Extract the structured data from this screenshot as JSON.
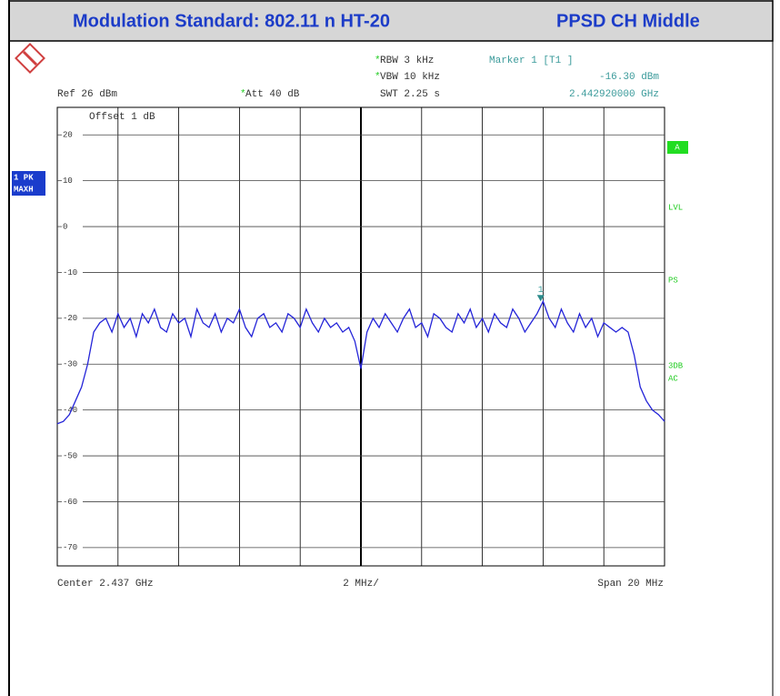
{
  "chart_data": {
    "type": "line",
    "title": "Modulation Standard: 802.11 n HT-20",
    "subtitle": "PPSD CH Middle",
    "settings": {
      "rbw": "RBW 3 kHz",
      "vbw": "VBW 10 kHz",
      "swt": "SWT 2.25 s",
      "ref": "Ref 26 dBm",
      "att": "Att 40 dB",
      "offset": "Offset 1 dB"
    },
    "marker_info": {
      "title": "Marker 1 [T1 ]",
      "level": "-16.30 dBm",
      "frequency": "2.442920000 GHz"
    },
    "trace_label": [
      "1 PK",
      "MAXH"
    ],
    "side_labels": [
      "A",
      "LVL",
      "PS",
      "3DB",
      "AC"
    ],
    "footer": {
      "center": "Center 2.437 GHz",
      "division": "2 MHz/",
      "span": "Span 20 MHz"
    },
    "xlim": [
      2.427,
      2.447
    ],
    "xticks": [
      2.427,
      2.429,
      2.431,
      2.433,
      2.435,
      2.437,
      2.439,
      2.441,
      2.443,
      2.445,
      2.447
    ],
    "ylim": [
      -74,
      26
    ],
    "yticks": [
      20,
      10,
      0,
      -10,
      -20,
      -30,
      -40,
      -50,
      -60,
      -70
    ],
    "grid": true,
    "x": [
      2.427,
      2.4272,
      2.4274,
      2.4276,
      2.4278,
      2.428,
      2.4282,
      2.4284,
      2.4286,
      2.4288,
      2.429,
      2.4292,
      2.4294,
      2.4296,
      2.4298,
      2.43,
      2.4302,
      2.4304,
      2.4306,
      2.4308,
      2.431,
      2.4312,
      2.4314,
      2.4316,
      2.4318,
      2.432,
      2.4322,
      2.4324,
      2.4326,
      2.4328,
      2.433,
      2.4332,
      2.4334,
      2.4336,
      2.4338,
      2.434,
      2.4342,
      2.4344,
      2.4346,
      2.4348,
      2.435,
      2.4352,
      2.4354,
      2.4356,
      2.4358,
      2.436,
      2.4362,
      2.4364,
      2.4366,
      2.4368,
      2.437,
      2.4372,
      2.4374,
      2.4376,
      2.4378,
      2.438,
      2.4382,
      2.4384,
      2.4386,
      2.4388,
      2.439,
      2.4392,
      2.4394,
      2.4396,
      2.4398,
      2.44,
      2.4402,
      2.4404,
      2.4406,
      2.4408,
      2.441,
      2.4412,
      2.4414,
      2.4416,
      2.4418,
      2.442,
      2.4422,
      2.4424,
      2.4426,
      2.4428,
      2.443,
      2.4432,
      2.4434,
      2.4436,
      2.4438,
      2.444,
      2.4442,
      2.4444,
      2.4446,
      2.4448,
      2.445,
      2.4452,
      2.4454,
      2.4456,
      2.4458,
      2.446,
      2.4462,
      2.4464,
      2.4466,
      2.4468,
      2.447
    ],
    "series": [
      {
        "name": "1 PK MAXH",
        "color": "#2424d8",
        "values": [
          -43,
          -42.5,
          -41,
          -38,
          -35,
          -30,
          -23,
          -21,
          -20,
          -23,
          -19,
          -22,
          -20,
          -24,
          -19,
          -21,
          -18,
          -22,
          -23,
          -19,
          -21,
          -20,
          -24,
          -18,
          -21,
          -22,
          -19,
          -23,
          -20,
          -21,
          -18,
          -22,
          -24,
          -20,
          -19,
          -22,
          -21,
          -23,
          -19,
          -20,
          -22,
          -18,
          -21,
          -23,
          -20,
          -22,
          -21,
          -23,
          -22,
          -25,
          -31,
          -23,
          -20,
          -22,
          -19,
          -21,
          -23,
          -20,
          -18,
          -22,
          -21,
          -24,
          -19,
          -20,
          -22,
          -23,
          -19,
          -21,
          -18,
          -22,
          -20,
          -23,
          -19,
          -21,
          -22,
          -18,
          -20,
          -23,
          -21,
          -19,
          -16.3,
          -20,
          -22,
          -18,
          -21,
          -23,
          -19,
          -22,
          -20,
          -24,
          -21,
          -22,
          -23,
          -22,
          -23,
          -28,
          -35,
          -38,
          -40,
          -41,
          -42.5
        ]
      }
    ],
    "marker": {
      "label": "1",
      "x": 2.44292,
      "value": -16.3
    }
  }
}
